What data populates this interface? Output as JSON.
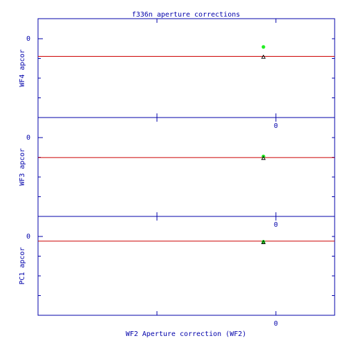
{
  "chart_data": {
    "type": "scatter",
    "title": "f336n aperture corrections",
    "xlabel": "WF2 Aperture correction (WF2)",
    "x_tick_label": "0",
    "y_tick_label": "0",
    "colors": {
      "axes": "#0000aa",
      "reference_line": "#cc0000",
      "green_point": "#22ee22",
      "black_point": "#000000"
    },
    "panels": [
      {
        "ylabel": "WF4 apcor",
        "reference_line_y": -0.15,
        "points": [
          {
            "x": -0.015,
            "y": -0.07,
            "color": "green"
          },
          {
            "x": -0.015,
            "y": -0.155,
            "color": "black"
          }
        ]
      },
      {
        "ylabel": "WF3 apcor",
        "reference_line_y": -0.17,
        "points": [
          {
            "x": -0.015,
            "y": -0.16,
            "color": "green"
          },
          {
            "x": -0.015,
            "y": -0.175,
            "color": "black"
          }
        ]
      },
      {
        "ylabel": "PC1 apcor",
        "reference_line_y": -0.04,
        "points": [
          {
            "x": -0.015,
            "y": -0.045,
            "color": "green"
          },
          {
            "x": -0.015,
            "y": -0.05,
            "color": "black"
          }
        ]
      }
    ]
  }
}
